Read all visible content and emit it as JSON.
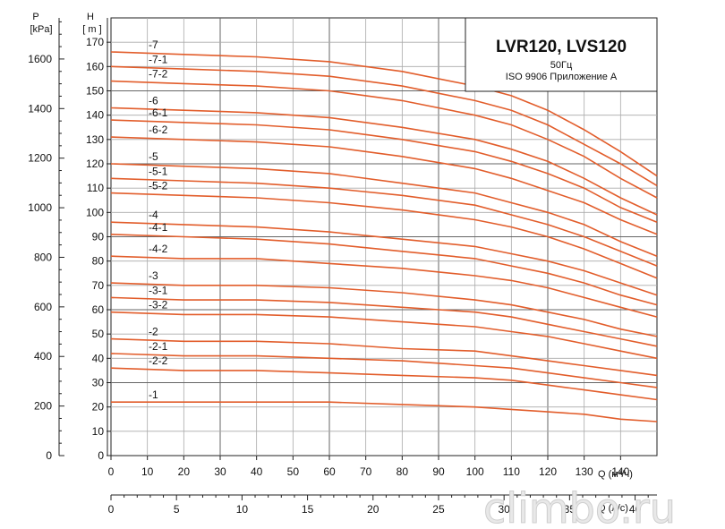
{
  "chart_data": {
    "type": "line",
    "title": "LVR120, LVS120",
    "subtitle": "50Гц",
    "note": "ISO 9906 Приложение А",
    "watermark": "climbo.ru",
    "y_left_title": "P",
    "y_left_unit": "[kPa]",
    "y_title": "H",
    "y_unit": "[ m ]",
    "x_title": "Q (м³/ч)",
    "x2_title": "Q (л/с)",
    "xlim": [
      0,
      150
    ],
    "ylim": [
      0,
      180
    ],
    "x2lim": [
      0,
      41.67
    ],
    "x_ticks": [
      "0",
      "10",
      "20",
      "30",
      "40",
      "50",
      "60",
      "70",
      "80",
      "90",
      "100",
      "110",
      "120",
      "130",
      "140"
    ],
    "y_ticks": [
      "0",
      "10",
      "20",
      "30",
      "40",
      "50",
      "60",
      "70",
      "80",
      "90",
      "100",
      "110",
      "120",
      "130",
      "140",
      "150",
      "160",
      "170"
    ],
    "p_ticks": [
      "0",
      "200",
      "400",
      "600",
      "800",
      "1000",
      "1200",
      "1400",
      "1600"
    ],
    "x2_ticks": [
      "0",
      "5",
      "10",
      "15",
      "20",
      "25",
      "30",
      "35",
      "40"
    ],
    "grid": true,
    "curve_color": "#e25d2b",
    "series": [
      {
        "name": "-7",
        "x": [
          0,
          20,
          40,
          60,
          80,
          100,
          110,
          120,
          130,
          140,
          150
        ],
        "y": [
          166,
          165,
          164,
          162,
          158,
          152,
          148,
          142,
          134,
          125,
          115
        ]
      },
      {
        "name": "-7-1",
        "x": [
          0,
          20,
          40,
          60,
          80,
          100,
          110,
          120,
          130,
          140,
          150
        ],
        "y": [
          160,
          159,
          158,
          156,
          152,
          146,
          142,
          136,
          128,
          120,
          111
        ]
      },
      {
        "name": "-7-2",
        "x": [
          0,
          20,
          40,
          60,
          80,
          100,
          110,
          120,
          130,
          140,
          150
        ],
        "y": [
          154,
          153,
          152,
          150,
          146,
          140,
          136,
          130,
          123,
          114,
          106
        ]
      },
      {
        "name": "-6",
        "x": [
          0,
          20,
          40,
          60,
          80,
          100,
          110,
          120,
          130,
          140,
          150
        ],
        "y": [
          143,
          142,
          141,
          139,
          135,
          130,
          126,
          121,
          114,
          106,
          99
        ]
      },
      {
        "name": "-6-1",
        "x": [
          0,
          20,
          40,
          60,
          80,
          100,
          110,
          120,
          130,
          140,
          150
        ],
        "y": [
          138,
          137,
          136,
          134,
          130,
          125,
          121,
          116,
          110,
          102,
          96
        ]
      },
      {
        "name": "-6-2",
        "x": [
          0,
          20,
          40,
          60,
          80,
          100,
          110,
          120,
          130,
          140,
          150
        ],
        "y": [
          131,
          130,
          129,
          127,
          123,
          118,
          114,
          109,
          104,
          97,
          91
        ]
      },
      {
        "name": "-5",
        "x": [
          0,
          20,
          40,
          60,
          80,
          100,
          110,
          120,
          130,
          140,
          150
        ],
        "y": [
          120,
          119,
          118,
          116,
          112,
          108,
          104,
          100,
          95,
          88,
          82
        ]
      },
      {
        "name": "-5-1",
        "x": [
          0,
          20,
          40,
          60,
          80,
          100,
          110,
          120,
          130,
          140,
          150
        ],
        "y": [
          114,
          113,
          112,
          110,
          107,
          103,
          99,
          95,
          90,
          84,
          78
        ]
      },
      {
        "name": "-5-2",
        "x": [
          0,
          20,
          40,
          60,
          80,
          100,
          110,
          120,
          130,
          140,
          150
        ],
        "y": [
          108,
          107,
          106,
          104,
          101,
          97,
          94,
          90,
          85,
          79,
          73
        ]
      },
      {
        "name": "-4",
        "x": [
          0,
          20,
          40,
          60,
          80,
          100,
          110,
          120,
          130,
          140,
          150
        ],
        "y": [
          96,
          95,
          94,
          92,
          89,
          86,
          83,
          80,
          76,
          71,
          66
        ]
      },
      {
        "name": "-4-1",
        "x": [
          0,
          20,
          40,
          60,
          80,
          100,
          110,
          120,
          130,
          140,
          150
        ],
        "y": [
          91,
          90,
          89,
          87,
          84,
          81,
          78,
          75,
          71,
          66,
          62
        ]
      },
      {
        "name": "-4-2",
        "x": [
          0,
          20,
          40,
          60,
          80,
          100,
          110,
          120,
          130,
          140,
          150
        ],
        "y": [
          82,
          81,
          81,
          79,
          77,
          74,
          72,
          69,
          65,
          61,
          57
        ]
      },
      {
        "name": "-3",
        "x": [
          0,
          20,
          40,
          60,
          80,
          100,
          110,
          120,
          130,
          140,
          150
        ],
        "y": [
          71,
          70,
          70,
          69,
          67,
          64,
          62,
          59,
          56,
          52,
          49
        ]
      },
      {
        "name": "-3-1",
        "x": [
          0,
          20,
          40,
          60,
          80,
          100,
          110,
          120,
          130,
          140,
          150
        ],
        "y": [
          65,
          64,
          64,
          63,
          61,
          59,
          57,
          54,
          51,
          48,
          45
        ]
      },
      {
        "name": "-3-2",
        "x": [
          0,
          20,
          40,
          60,
          80,
          100,
          110,
          120,
          130,
          140,
          150
        ],
        "y": [
          59,
          58,
          58,
          57,
          55,
          53,
          51,
          49,
          46,
          43,
          40
        ]
      },
      {
        "name": "-2",
        "x": [
          0,
          20,
          40,
          60,
          80,
          100,
          110,
          120,
          130,
          140,
          150
        ],
        "y": [
          48,
          47,
          47,
          46,
          44,
          43,
          41,
          39,
          37,
          35,
          33
        ]
      },
      {
        "name": "-2-1",
        "x": [
          0,
          20,
          40,
          60,
          80,
          100,
          110,
          120,
          130,
          140,
          150
        ],
        "y": [
          42,
          41,
          41,
          40,
          39,
          37,
          36,
          34,
          32,
          30,
          28
        ]
      },
      {
        "name": "-2-2",
        "x": [
          0,
          20,
          40,
          60,
          80,
          100,
          110,
          120,
          130,
          140,
          150
        ],
        "y": [
          36,
          35,
          35,
          34,
          33,
          32,
          31,
          29,
          27,
          25,
          23
        ]
      },
      {
        "name": "-1",
        "x": [
          0,
          20,
          40,
          60,
          80,
          100,
          110,
          120,
          130,
          140,
          150
        ],
        "y": [
          22,
          22,
          22,
          22,
          21,
          20,
          19,
          18,
          17,
          15,
          14
        ]
      }
    ]
  }
}
